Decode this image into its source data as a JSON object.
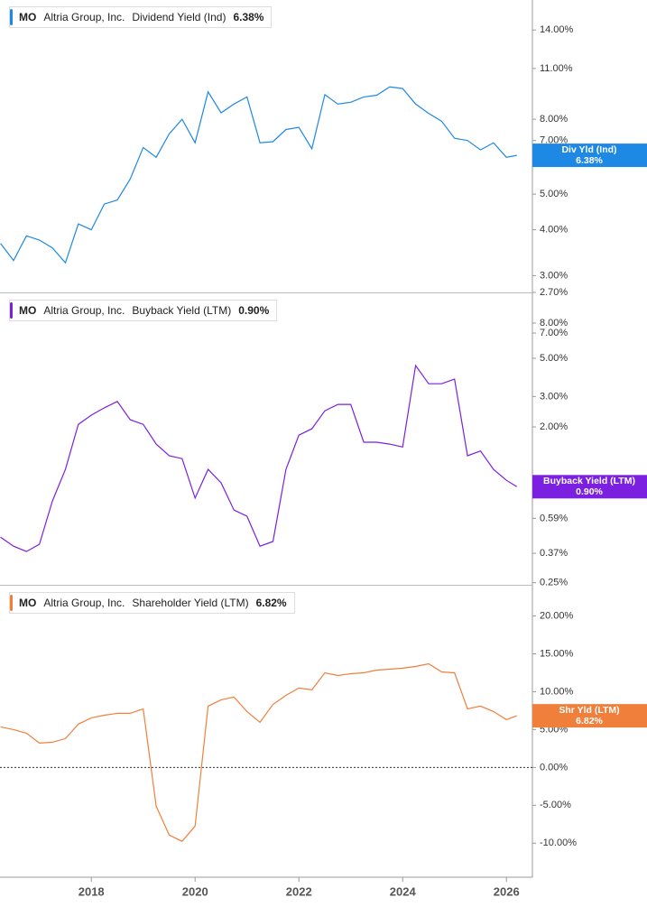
{
  "chart_data": [
    {
      "type": "line",
      "ticker": "MO",
      "company": "Altria Group, Inc.",
      "log_scale": true,
      "xlim": [
        2016.24,
        2026.5
      ],
      "ylim": [
        2.7,
        16.9
      ],
      "yticks": [
        {
          "value": 14,
          "label": "14.00%"
        },
        {
          "value": 11,
          "label": "11.00%"
        },
        {
          "value": 8,
          "label": "8.00%"
        },
        {
          "value": 7,
          "label": "7.00%"
        },
        {
          "value": 5,
          "label": "5.00%"
        },
        {
          "value": 4,
          "label": "4.00%"
        },
        {
          "value": 3,
          "label": "3.00%"
        },
        {
          "value": 2.7,
          "label": "2.70%"
        }
      ],
      "x": [
        2016.25,
        2016.5,
        2016.75,
        2017,
        2017.25,
        2017.5,
        2017.75,
        2018,
        2018.25,
        2018.5,
        2018.75,
        2019,
        2019.25,
        2019.5,
        2019.75,
        2020,
        2020.25,
        2020.5,
        2020.75,
        2021,
        2021.25,
        2021.5,
        2021.75,
        2022,
        2022.25,
        2022.5,
        2022.75,
        2023,
        2023.25,
        2023.5,
        2023.75,
        2024,
        2024.25,
        2024.5,
        2024.75,
        2025,
        2025.25,
        2025.5,
        2025.75,
        2026,
        2026.2
      ],
      "series": [
        {
          "name": "Dividend Yield (Ind)",
          "badge_label": "Div Yld (Ind)",
          "color": "#1e88e5",
          "last_value_label": "6.38%",
          "values": [
            3.67,
            3.3,
            3.85,
            3.75,
            3.57,
            3.25,
            4.15,
            4.0,
            4.7,
            4.82,
            5.5,
            6.7,
            6.3,
            7.3,
            8.0,
            6.9,
            9.5,
            8.33,
            8.8,
            9.2,
            6.9,
            6.95,
            7.5,
            7.6,
            6.65,
            9.33,
            8.8,
            8.9,
            9.2,
            9.3,
            9.8,
            9.7,
            8.8,
            8.3,
            7.9,
            7.1,
            7.0,
            6.6,
            6.9,
            6.3,
            6.38
          ]
        }
      ]
    },
    {
      "type": "line",
      "ticker": "MO",
      "company": "Altria Group, Inc.",
      "log_scale": true,
      "xlim": [
        2016.24,
        2026.5
      ],
      "ylim": [
        0.243,
        11.9
      ],
      "yticks": [
        {
          "value": 8,
          "label": "8.00%"
        },
        {
          "value": 7,
          "label": "7.00%"
        },
        {
          "value": 5,
          "label": "5.00%"
        },
        {
          "value": 3,
          "label": "3.00%"
        },
        {
          "value": 2,
          "label": "2.00%"
        },
        {
          "value": 0.59,
          "label": "0.59%"
        },
        {
          "value": 0.37,
          "label": "0.37%"
        },
        {
          "value": 0.25,
          "label": "0.25%"
        }
      ],
      "x": [
        2016.25,
        2016.5,
        2016.75,
        2017,
        2017.25,
        2017.5,
        2017.75,
        2018,
        2018.25,
        2018.5,
        2018.75,
        2019,
        2019.25,
        2019.5,
        2019.75,
        2020,
        2020.25,
        2020.5,
        2020.75,
        2021,
        2021.25,
        2021.5,
        2021.75,
        2022,
        2022.25,
        2022.5,
        2022.75,
        2023,
        2023.25,
        2023.5,
        2023.75,
        2024,
        2024.25,
        2024.5,
        2024.75,
        2025,
        2025.25,
        2025.5,
        2025.75,
        2026,
        2026.2
      ],
      "series": [
        {
          "name": "Buyback Yield (LTM)",
          "badge_label": "Buyback Yield (LTM)",
          "color": "#7b1fe0",
          "last_value_label": "0.90%",
          "values": [
            0.459,
            0.407,
            0.379,
            0.418,
            0.744,
            1.135,
            2.07,
            2.34,
            2.58,
            2.81,
            2.2,
            2.07,
            1.59,
            1.36,
            1.31,
            0.773,
            1.135,
            0.948,
            0.659,
            0.607,
            0.407,
            0.433,
            1.135,
            1.79,
            1.95,
            2.48,
            2.7,
            2.7,
            1.63,
            1.63,
            1.59,
            1.53,
            4.54,
            3.56,
            3.56,
            3.79,
            1.36,
            1.45,
            1.135,
            0.98,
            0.9
          ]
        }
      ]
    },
    {
      "type": "line",
      "ticker": "MO",
      "company": "Altria Group, Inc.",
      "log_scale": false,
      "zero_line": true,
      "xlim": [
        2016.24,
        2026.5
      ],
      "ylim": [
        -14.5,
        24
      ],
      "xticks": [
        2018,
        2020,
        2022,
        2024,
        2026
      ],
      "yticks": [
        {
          "value": 20,
          "label": "20.00%"
        },
        {
          "value": 15,
          "label": "15.00%"
        },
        {
          "value": 10,
          "label": "10.00%"
        },
        {
          "value": 5,
          "label": "5.00%"
        },
        {
          "value": 0,
          "label": "0.00%"
        },
        {
          "value": -5,
          "label": "-5.00%"
        },
        {
          "value": -10,
          "label": "-10.00%"
        }
      ],
      "x": [
        2016.25,
        2016.5,
        2016.75,
        2017,
        2017.25,
        2017.5,
        2017.75,
        2018,
        2018.25,
        2018.5,
        2018.75,
        2019,
        2019.25,
        2019.5,
        2019.75,
        2020,
        2020.25,
        2020.5,
        2020.75,
        2021,
        2021.25,
        2021.5,
        2021.75,
        2022,
        2022.25,
        2022.5,
        2022.75,
        2023,
        2023.25,
        2023.5,
        2023.75,
        2024,
        2024.25,
        2024.5,
        2024.75,
        2025,
        2025.25,
        2025.5,
        2025.75,
        2026,
        2026.2
      ],
      "series": [
        {
          "name": "Shareholder Yield (LTM)",
          "badge_label": "Shr Yld (LTM)",
          "color": "#f07f3c",
          "last_value_label": "6.82%",
          "values": [
            5.36,
            5.0,
            4.52,
            3.21,
            3.33,
            3.81,
            5.71,
            6.55,
            6.9,
            7.14,
            7.14,
            7.74,
            -5.12,
            -8.93,
            -9.76,
            -7.74,
            8.1,
            8.93,
            9.29,
            7.38,
            5.95,
            8.33,
            9.52,
            10.48,
            10.24,
            12.5,
            12.14,
            12.38,
            12.5,
            12.86,
            12.98,
            13.1,
            13.33,
            13.69,
            12.62,
            12.5,
            7.74,
            8.1,
            7.38,
            6.31,
            6.82
          ]
        }
      ]
    }
  ]
}
